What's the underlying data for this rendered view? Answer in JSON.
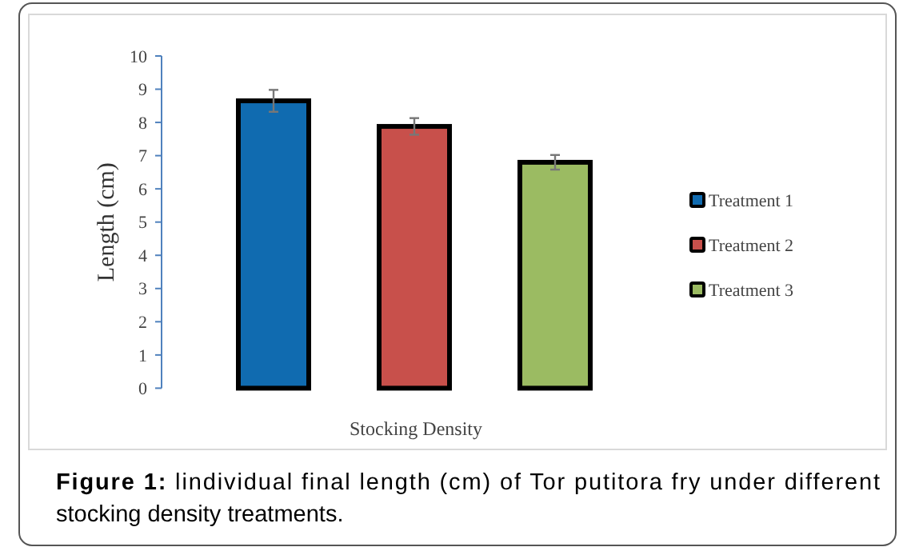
{
  "chart_data": {
    "type": "bar",
    "stacked": true,
    "xlabel": "Stocking Density",
    "ylabel": "Length  (cm)",
    "categories": [
      null,
      null,
      null
    ],
    "series": [
      {
        "name": "Treatment 1",
        "color": "#106bb0",
        "values": [
          8.65,
          null,
          null
        ],
        "errors": [
          0.33,
          null,
          null
        ]
      },
      {
        "name": "Treatment 2",
        "color": "#c8504b",
        "values": [
          null,
          7.88,
          null
        ],
        "errors": [
          null,
          0.25,
          null
        ]
      },
      {
        "name": "Treatment 3",
        "color": "#9bbb62",
        "values": [
          null,
          null,
          6.8
        ],
        "errors": [
          null,
          null,
          0.22
        ]
      }
    ],
    "ylim": [
      0,
      10
    ],
    "yticks": [
      0,
      1,
      2,
      3,
      4,
      5,
      6,
      7,
      8,
      9,
      10
    ],
    "grid": false,
    "legend": "right",
    "annotations": [
      "Figure 1: lindividual final length (cm) of Tor putitora fry under different stocking density treatments."
    ]
  }
}
